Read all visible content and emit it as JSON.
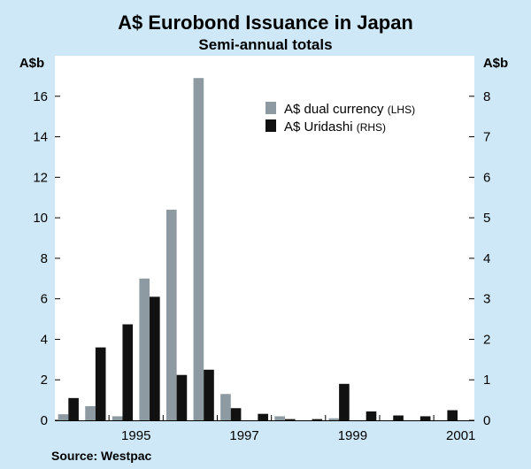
{
  "chart_data": {
    "type": "bar",
    "title": "A$ Eurobond Issuance in Japan",
    "subtitle": "Semi-annual totals",
    "left_axis": {
      "unit": "A$b",
      "ylim": [
        0,
        18
      ],
      "ticks": [
        0,
        2,
        4,
        6,
        8,
        10,
        12,
        14,
        16
      ]
    },
    "right_axis": {
      "unit": "A$b",
      "ylim": [
        0,
        9
      ],
      "ticks": [
        0,
        1,
        2,
        3,
        4,
        5,
        6,
        7,
        8
      ]
    },
    "x_axis": {
      "ticks": [
        "1995",
        "1997",
        "1999",
        "2001"
      ]
    },
    "grid": true,
    "legend_placement": "top-right",
    "periods": [
      "1994-H1",
      "1994-H2",
      "1995-H1",
      "1995-H2",
      "1996-H1",
      "1996-H2",
      "1997-H1",
      "1997-H2",
      "1998-H1",
      "1998-H2",
      "1999-H1",
      "1999-H2",
      "2000-H1",
      "2000-H2",
      "2001-H1"
    ],
    "series": [
      {
        "name": "A$ dual currency",
        "axis_note": "(LHS)",
        "axis": "left",
        "color": "#8e9aa1",
        "values": [
          0.3,
          0.7,
          0.2,
          7.0,
          10.4,
          16.9,
          1.3,
          0.0,
          0.2,
          0.0,
          0.1,
          0.0,
          0.0,
          0.0,
          0.0
        ]
      },
      {
        "name": "A$ Uridashi",
        "axis_note": "(RHS)",
        "axis": "right",
        "color": "#111111",
        "values": [
          0.55,
          1.8,
          2.37,
          3.05,
          1.12,
          1.25,
          0.3,
          0.16,
          0.03,
          0.03,
          0.9,
          0.22,
          0.12,
          0.1,
          0.25
        ]
      }
    ],
    "source": "Source: Westpac"
  }
}
